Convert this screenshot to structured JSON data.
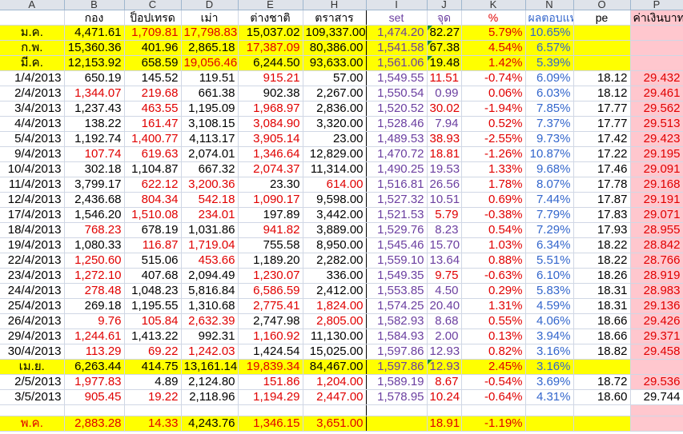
{
  "column_letters": [
    "A",
    "B",
    "C",
    "D",
    "E",
    "H",
    "I",
    "J",
    "K",
    "N",
    "O",
    "P"
  ],
  "header": [
    "",
    "กอง",
    "ป็อปเทรด",
    "เม่า",
    "ต่างชาติ",
    "ตราสาร",
    "set",
    "จุด",
    "%",
    "ผลตอบแทน",
    "pe",
    "ค่าเงินบาท"
  ],
  "rows": [
    {
      "type": "yellow",
      "cells": [
        "ม.ค.",
        "4,471.61",
        "1,709.81",
        "17,798.83",
        "15,037.02",
        "109,337.00",
        "1,474.20",
        "82.27",
        "5.79%",
        "10.65%",
        "",
        ""
      ],
      "colors": [
        "b",
        "b",
        "r",
        "r",
        "b",
        "b",
        "p",
        "b",
        "r",
        "u",
        "b",
        "b"
      ],
      "tri": [
        7
      ]
    },
    {
      "type": "yellow",
      "cells": [
        "ก.พ.",
        "15,360.36",
        "401.96",
        "2,865.18",
        "17,387.09",
        "80,386.00",
        "1,541.58",
        "67.38",
        "4.54%",
        "6.57%",
        "",
        ""
      ],
      "colors": [
        "b",
        "b",
        "b",
        "b",
        "r",
        "b",
        "p",
        "b",
        "r",
        "u",
        "b",
        "b"
      ],
      "tri": [
        7
      ]
    },
    {
      "type": "yellow",
      "cells": [
        "มี.ค.",
        "12,153.92",
        "658.59",
        "19,056.46",
        "6,244.50",
        "93,633.00",
        "1,561.06",
        "19.48",
        "1.42%",
        "5.39%",
        "",
        ""
      ],
      "colors": [
        "b",
        "b",
        "b",
        "r",
        "b",
        "b",
        "p",
        "b",
        "r",
        "u",
        "b",
        "b"
      ],
      "tri": [
        7
      ]
    },
    {
      "type": "data",
      "cells": [
        "1/4/2013",
        "650.19",
        "145.52",
        "119.51",
        "915.21",
        "57.00",
        "1,549.55",
        "11.51",
        "-0.74%",
        "6.09%",
        "18.12",
        "29.432"
      ],
      "colors": [
        "b",
        "b",
        "b",
        "b",
        "r",
        "b",
        "p",
        "r",
        "r",
        "u",
        "b",
        "r"
      ]
    },
    {
      "type": "data",
      "cells": [
        "2/4/2013",
        "1,344.07",
        "219.68",
        "661.38",
        "902.38",
        "2,267.00",
        "1,550.54",
        "0.99",
        "0.06%",
        "6.03%",
        "18.12",
        "29.461"
      ],
      "colors": [
        "b",
        "r",
        "r",
        "b",
        "b",
        "b",
        "p",
        "p",
        "r",
        "u",
        "b",
        "r"
      ]
    },
    {
      "type": "data",
      "cells": [
        "3/4/2013",
        "1,237.43",
        "463.55",
        "1,195.09",
        "1,968.97",
        "2,836.00",
        "1,520.52",
        "30.02",
        "-1.94%",
        "7.85%",
        "17.77",
        "29.562"
      ],
      "colors": [
        "b",
        "b",
        "r",
        "b",
        "r",
        "b",
        "p",
        "r",
        "r",
        "u",
        "b",
        "r"
      ]
    },
    {
      "type": "data",
      "cells": [
        "4/4/2013",
        "138.22",
        "161.47",
        "3,108.15",
        "3,084.90",
        "3,320.00",
        "1,528.46",
        "7.94",
        "0.52%",
        "7.37%",
        "17.77",
        "29.513"
      ],
      "colors": [
        "b",
        "b",
        "r",
        "b",
        "r",
        "b",
        "p",
        "p",
        "r",
        "u",
        "b",
        "r"
      ]
    },
    {
      "type": "data",
      "cells": [
        "5/4/2013",
        "1,192.74",
        "1,400.77",
        "4,113.17",
        "3,905.14",
        "23.00",
        "1,489.53",
        "38.93",
        "-2.55%",
        "9.73%",
        "17.42",
        "29.423"
      ],
      "colors": [
        "b",
        "b",
        "r",
        "b",
        "r",
        "b",
        "p",
        "r",
        "r",
        "u",
        "b",
        "r"
      ]
    },
    {
      "type": "data",
      "cells": [
        "9/4/2013",
        "107.74",
        "619.63",
        "2,074.01",
        "1,346.64",
        "12,829.00",
        "1,470.72",
        "18.81",
        "-1.26%",
        "10.87%",
        "17.22",
        "29.195"
      ],
      "colors": [
        "b",
        "r",
        "r",
        "b",
        "r",
        "b",
        "p",
        "r",
        "r",
        "u",
        "b",
        "r"
      ]
    },
    {
      "type": "data",
      "cells": [
        "10/4/2013",
        "302.18",
        "1,104.87",
        "667.32",
        "2,074.37",
        "11,314.00",
        "1,490.25",
        "19.53",
        "1.33%",
        "9.68%",
        "17.46",
        "29.091"
      ],
      "colors": [
        "b",
        "b",
        "b",
        "b",
        "r",
        "b",
        "p",
        "p",
        "r",
        "u",
        "b",
        "r"
      ]
    },
    {
      "type": "data",
      "cells": [
        "11/4/2013",
        "3,799.17",
        "622.12",
        "3,200.36",
        "23.30",
        "614.00",
        "1,516.81",
        "26.56",
        "1.78%",
        "8.07%",
        "17.78",
        "29.168"
      ],
      "colors": [
        "b",
        "b",
        "r",
        "r",
        "b",
        "r",
        "p",
        "p",
        "r",
        "u",
        "b",
        "r"
      ]
    },
    {
      "type": "data",
      "cells": [
        "12/4/2013",
        "2,436.68",
        "804.34",
        "542.18",
        "1,090.17",
        "9,598.00",
        "1,527.32",
        "10.51",
        "0.69%",
        "7.44%",
        "17.87",
        "29.191"
      ],
      "colors": [
        "b",
        "b",
        "r",
        "r",
        "r",
        "b",
        "p",
        "p",
        "r",
        "u",
        "b",
        "r"
      ]
    },
    {
      "type": "data",
      "cells": [
        "17/4/2013",
        "1,546.20",
        "1,510.08",
        "234.01",
        "197.89",
        "3,442.00",
        "1,521.53",
        "5.79",
        "-0.38%",
        "7.79%",
        "17.83",
        "29.071"
      ],
      "colors": [
        "b",
        "b",
        "r",
        "r",
        "b",
        "b",
        "p",
        "r",
        "r",
        "u",
        "b",
        "r"
      ]
    },
    {
      "type": "data",
      "cells": [
        "18/4/2013",
        "768.23",
        "678.19",
        "1,031.86",
        "941.82",
        "3,889.00",
        "1,529.76",
        "8.23",
        "0.54%",
        "7.29%",
        "17.93",
        "28.955"
      ],
      "colors": [
        "b",
        "r",
        "b",
        "b",
        "r",
        "b",
        "p",
        "p",
        "r",
        "u",
        "b",
        "r"
      ]
    },
    {
      "type": "data",
      "cells": [
        "19/4/2013",
        "1,080.33",
        "116.87",
        "1,719.04",
        "755.58",
        "8,950.00",
        "1,545.46",
        "15.70",
        "1.03%",
        "6.34%",
        "18.22",
        "28.842"
      ],
      "colors": [
        "b",
        "b",
        "r",
        "r",
        "b",
        "b",
        "p",
        "p",
        "r",
        "u",
        "b",
        "r"
      ]
    },
    {
      "type": "data",
      "cells": [
        "22/4/2013",
        "1,250.60",
        "515.06",
        "453.66",
        "1,189.20",
        "2,282.00",
        "1,559.10",
        "13.64",
        "0.88%",
        "5.51%",
        "18.22",
        "28.766"
      ],
      "colors": [
        "b",
        "r",
        "b",
        "r",
        "b",
        "b",
        "p",
        "p",
        "r",
        "u",
        "b",
        "r"
      ]
    },
    {
      "type": "data",
      "cells": [
        "23/4/2013",
        "1,272.10",
        "407.68",
        "2,094.49",
        "1,230.07",
        "336.00",
        "1,549.35",
        "9.75",
        "-0.63%",
        "6.10%",
        "18.26",
        "28.919"
      ],
      "colors": [
        "b",
        "r",
        "b",
        "b",
        "r",
        "b",
        "p",
        "r",
        "r",
        "u",
        "b",
        "r"
      ]
    },
    {
      "type": "data",
      "cells": [
        "24/4/2013",
        "278.48",
        "1,048.23",
        "5,816.84",
        "6,586.59",
        "2,412.00",
        "1,553.85",
        "4.50",
        "0.29%",
        "5.83%",
        "18.31",
        "28.983"
      ],
      "colors": [
        "b",
        "r",
        "b",
        "b",
        "r",
        "b",
        "p",
        "p",
        "r",
        "u",
        "b",
        "r"
      ]
    },
    {
      "type": "data",
      "cells": [
        "25/4/2013",
        "269.18",
        "1,195.55",
        "1,310.68",
        "2,775.41",
        "1,824.00",
        "1,574.25",
        "20.40",
        "1.31%",
        "4.59%",
        "18.31",
        "29.136"
      ],
      "colors": [
        "b",
        "b",
        "b",
        "b",
        "r",
        "r",
        "p",
        "p",
        "r",
        "u",
        "b",
        "r"
      ]
    },
    {
      "type": "data",
      "cells": [
        "26/4/2013",
        "9.76",
        "105.84",
        "2,632.39",
        "2,747.98",
        "2,805.00",
        "1,582.93",
        "8.68",
        "0.55%",
        "4.06%",
        "18.66",
        "29.426"
      ],
      "colors": [
        "b",
        "r",
        "r",
        "r",
        "b",
        "r",
        "p",
        "p",
        "r",
        "u",
        "b",
        "r"
      ]
    },
    {
      "type": "data",
      "cells": [
        "29/4/2013",
        "1,244.61",
        "1,413.22",
        "992.31",
        "1,160.92",
        "11,130.00",
        "1,584.93",
        "2.00",
        "0.13%",
        "3.94%",
        "18.66",
        "29.371"
      ],
      "colors": [
        "b",
        "r",
        "b",
        "b",
        "r",
        "b",
        "p",
        "p",
        "r",
        "u",
        "b",
        "r"
      ]
    },
    {
      "type": "data",
      "cells": [
        "30/4/2013",
        "113.29",
        "69.22",
        "1,242.03",
        "1,424.54",
        "15,025.00",
        "1,597.86",
        "12.93",
        "0.82%",
        "3.16%",
        "18.82",
        "29.458"
      ],
      "colors": [
        "b",
        "r",
        "r",
        "r",
        "b",
        "b",
        "p",
        "p",
        "r",
        "u",
        "b",
        "r"
      ]
    },
    {
      "type": "yellow",
      "cells": [
        "เม.ย.",
        "6,263.44",
        "414.75",
        "13,161.14",
        "19,839.34",
        "84,467.00",
        "1,597.86",
        "12.93",
        "2.45%",
        "3.16%",
        "",
        ""
      ],
      "colors": [
        "b",
        "b",
        "b",
        "b",
        "r",
        "b",
        "p",
        "p",
        "r",
        "u",
        "b",
        "b"
      ],
      "tri": [
        7
      ]
    },
    {
      "type": "data",
      "cells": [
        "2/5/2013",
        "1,977.83",
        "4.89",
        "2,124.80",
        "151.86",
        "1,204.00",
        "1,589.19",
        "8.67",
        "-0.54%",
        "3.69%",
        "18.72",
        "29.536"
      ],
      "colors": [
        "b",
        "r",
        "b",
        "b",
        "r",
        "r",
        "p",
        "r",
        "r",
        "u",
        "b",
        "r"
      ]
    },
    {
      "type": "data",
      "cells": [
        "3/5/2013",
        "905.45",
        "19.22",
        "2,118.96",
        "1,194.29",
        "2,447.00",
        "1,578.95",
        "10.24",
        "-0.64%",
        "4.31%",
        "18.60",
        "29.744"
      ],
      "colors": [
        "b",
        "r",
        "r",
        "b",
        "r",
        "r",
        "p",
        "r",
        "r",
        "u",
        "b",
        "b"
      ],
      "nopink": true
    },
    {
      "type": "blank",
      "cells": [
        "",
        "",
        "",
        "",
        "",
        "",
        "",
        "",
        "",
        "",
        "",
        ""
      ],
      "colors": [
        "b",
        "b",
        "b",
        "b",
        "b",
        "b",
        "b",
        "b",
        "b",
        "b",
        "b",
        "b"
      ]
    },
    {
      "type": "yellow",
      "cells": [
        "พ.ค.",
        "2,883.28",
        "14.33",
        "4,243.76",
        "1,346.15",
        "3,651.00",
        "",
        "18.91",
        "-1.19%",
        "",
        "",
        ""
      ],
      "colors": [
        "r",
        "r",
        "r",
        "b",
        "r",
        "r",
        "p",
        "r",
        "r",
        "u",
        "b",
        "b"
      ]
    }
  ]
}
